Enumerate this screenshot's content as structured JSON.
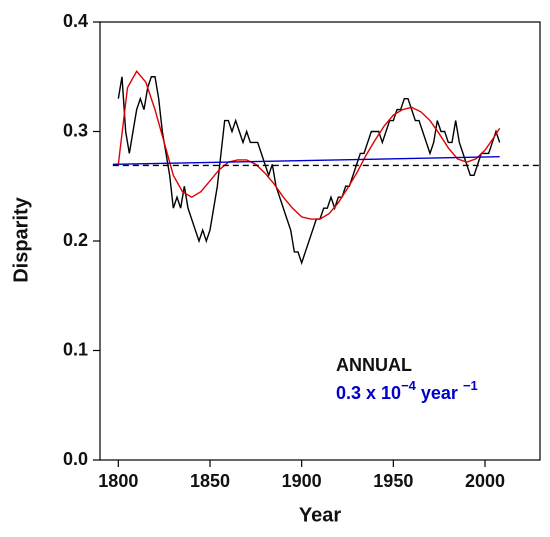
{
  "chart_data": {
    "type": "line",
    "xlabel": "Year",
    "ylabel": "Disparity",
    "xlim": [
      1790,
      2030
    ],
    "ylim": [
      0,
      0.4
    ],
    "xticks": [
      1800,
      1850,
      1900,
      1950,
      2000
    ],
    "yticks": [
      {
        "value": 0,
        "label": "0.0"
      },
      0.1,
      0.2,
      0.3,
      0.4
    ],
    "series": [
      {
        "color": "#000000",
        "x": [
          1800,
          1802,
          1804,
          1806,
          1808,
          1810,
          1812,
          1814,
          1816,
          1818,
          1820,
          1822,
          1824,
          1826,
          1828,
          1830,
          1832,
          1834,
          1836,
          1838,
          1840,
          1842,
          1844,
          1846,
          1848,
          1850,
          1852,
          1854,
          1856,
          1858,
          1860,
          1862,
          1864,
          1866,
          1868,
          1870,
          1872,
          1874,
          1876,
          1878,
          1880,
          1882,
          1884,
          1886,
          1888,
          1890,
          1892,
          1894,
          1896,
          1898,
          1900,
          1902,
          1904,
          1906,
          1908,
          1910,
          1912,
          1914,
          1916,
          1918,
          1920,
          1922,
          1924,
          1926,
          1928,
          1930,
          1932,
          1934,
          1936,
          1938,
          1940,
          1942,
          1944,
          1946,
          1948,
          1950,
          1952,
          1954,
          1956,
          1958,
          1960,
          1962,
          1964,
          1966,
          1968,
          1970,
          1972,
          1974,
          1976,
          1978,
          1980,
          1982,
          1984,
          1986,
          1988,
          1990,
          1992,
          1994,
          1996,
          1998,
          2000,
          2002,
          2004,
          2006,
          2008
        ],
        "values": [
          0.33,
          0.35,
          0.3,
          0.28,
          0.3,
          0.32,
          0.33,
          0.32,
          0.34,
          0.35,
          0.35,
          0.33,
          0.3,
          0.28,
          0.26,
          0.23,
          0.24,
          0.23,
          0.25,
          0.23,
          0.22,
          0.21,
          0.2,
          0.21,
          0.2,
          0.21,
          0.23,
          0.25,
          0.28,
          0.31,
          0.31,
          0.3,
          0.31,
          0.3,
          0.29,
          0.3,
          0.29,
          0.29,
          0.29,
          0.28,
          0.27,
          0.26,
          0.27,
          0.25,
          0.24,
          0.23,
          0.22,
          0.21,
          0.19,
          0.19,
          0.18,
          0.19,
          0.2,
          0.21,
          0.22,
          0.22,
          0.23,
          0.23,
          0.24,
          0.23,
          0.24,
          0.24,
          0.25,
          0.25,
          0.26,
          0.27,
          0.28,
          0.28,
          0.29,
          0.3,
          0.3,
          0.3,
          0.29,
          0.3,
          0.31,
          0.31,
          0.32,
          0.32,
          0.33,
          0.33,
          0.32,
          0.31,
          0.31,
          0.3,
          0.29,
          0.28,
          0.29,
          0.31,
          0.3,
          0.3,
          0.29,
          0.29,
          0.31,
          0.29,
          0.28,
          0.27,
          0.26,
          0.26,
          0.27,
          0.28,
          0.28,
          0.28,
          0.29,
          0.3,
          0.29
        ]
      },
      {
        "color": "#e00000",
        "x": [
          1800,
          1805,
          1810,
          1815,
          1820,
          1825,
          1830,
          1835,
          1840,
          1845,
          1850,
          1855,
          1860,
          1865,
          1870,
          1875,
          1880,
          1885,
          1890,
          1895,
          1900,
          1905,
          1910,
          1915,
          1920,
          1925,
          1930,
          1935,
          1940,
          1945,
          1950,
          1955,
          1960,
          1965,
          1970,
          1975,
          1980,
          1985,
          1990,
          1995,
          2000,
          2005,
          2008
        ],
        "values": [
          0.27,
          0.34,
          0.355,
          0.345,
          0.32,
          0.29,
          0.26,
          0.245,
          0.24,
          0.245,
          0.255,
          0.265,
          0.272,
          0.274,
          0.274,
          0.27,
          0.262,
          0.252,
          0.24,
          0.23,
          0.222,
          0.22,
          0.22,
          0.225,
          0.235,
          0.248,
          0.262,
          0.278,
          0.292,
          0.305,
          0.315,
          0.32,
          0.322,
          0.318,
          0.31,
          0.298,
          0.285,
          0.275,
          0.272,
          0.275,
          0.283,
          0.295,
          0.303
        ]
      },
      {
        "color": "#0000cc",
        "x": [
          1797,
          2008
        ],
        "values": [
          0.27,
          0.277
        ]
      },
      {
        "color": "#000000",
        "dash": true,
        "x": [
          1797,
          2030
        ],
        "values": [
          0.269,
          0.269
        ]
      }
    ],
    "annotations": [
      {
        "parts": [
          "ANNUAL"
        ],
        "color": "#111111"
      },
      {
        "parts": [
          "0.3 x 10",
          "−4",
          " year ",
          "−1"
        ],
        "color": "#0000cc"
      }
    ]
  }
}
